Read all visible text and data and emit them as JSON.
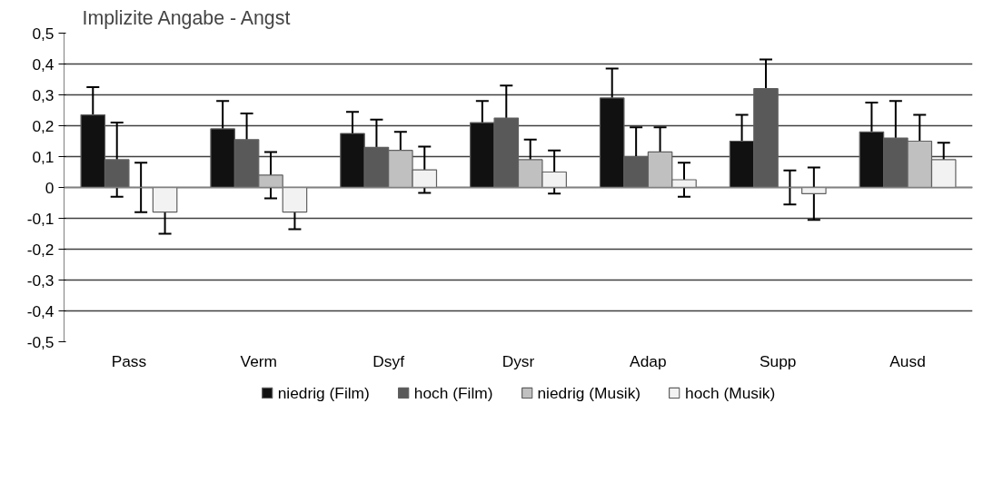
{
  "chart_data": {
    "type": "bar",
    "title": "Implizite Angabe - Angst",
    "categories": [
      "Pass",
      "Verm",
      "Dsyf",
      "Dysr",
      "Adap",
      "Supp",
      "Ausd"
    ],
    "series": [
      {
        "name": "niedrig (Film)",
        "color": "#111111",
        "values": [
          0.235,
          0.19,
          0.175,
          0.21,
          0.29,
          0.15,
          0.18
        ],
        "errors": [
          0.09,
          0.09,
          0.07,
          0.07,
          0.095,
          0.085,
          0.095
        ]
      },
      {
        "name": "hoch (Film)",
        "color": "#595959",
        "values": [
          0.09,
          0.155,
          0.13,
          0.225,
          0.1,
          0.32,
          0.16
        ],
        "errors": [
          0.12,
          0.085,
          0.09,
          0.105,
          0.095,
          0.095,
          0.12
        ]
      },
      {
        "name": "niedrig (Musik)",
        "color": "#c0c0c0",
        "values": [
          0.0,
          0.04,
          0.12,
          0.09,
          0.115,
          0.0,
          0.15
        ],
        "errors": [
          0.08,
          0.075,
          0.06,
          0.065,
          0.08,
          0.055,
          0.085
        ]
      },
      {
        "name": "hoch (Musik)",
        "color": "#f2f2f2",
        "values": [
          -0.08,
          -0.08,
          0.057,
          0.05,
          0.025,
          -0.02,
          0.09
        ],
        "errors": [
          0.07,
          0.055,
          0.075,
          0.07,
          0.055,
          0.085,
          0.055
        ]
      }
    ],
    "ylim": [
      -0.5,
      0.5
    ],
    "yticks": [
      {
        "value": -0.5,
        "label": "-0,5"
      },
      {
        "value": -0.4,
        "label": "-0,4"
      },
      {
        "value": -0.3,
        "label": "-0,3"
      },
      {
        "value": -0.2,
        "label": "-0,2"
      },
      {
        "value": -0.1,
        "label": "-0,1"
      },
      {
        "value": 0,
        "label": "0"
      },
      {
        "value": 0.1,
        "label": "0,1"
      },
      {
        "value": 0.2,
        "label": "0,2"
      },
      {
        "value": 0.3,
        "label": "0,3"
      },
      {
        "value": 0.4,
        "label": "0,4"
      },
      {
        "value": 0.5,
        "label": "0,5"
      }
    ],
    "grid": "y",
    "legend": "bottom"
  }
}
